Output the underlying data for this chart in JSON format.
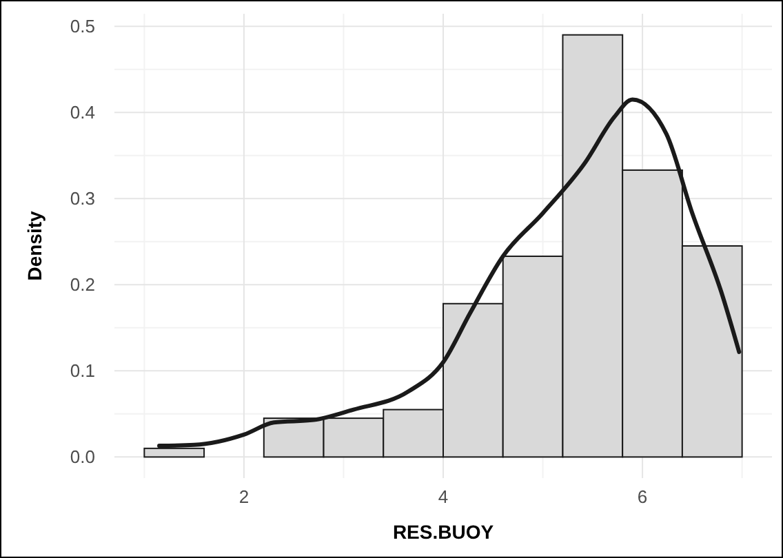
{
  "chart_data": {
    "type": "histogram",
    "xlabel": "RES.BUOY",
    "ylabel": "Density",
    "bins": [
      1,
      1.6,
      2.2,
      2.8,
      3.4,
      4.0,
      4.6,
      5.2,
      5.8,
      6.4,
      7.0
    ],
    "values": [
      0.01,
      0,
      0.045,
      0.045,
      0.055,
      0.178,
      0.233,
      0.49,
      0.333,
      0.245
    ],
    "color": "#d9d9d9",
    "series": [
      {
        "type": "line",
        "color": "#1a1a1a",
        "x": [
          1.15,
          1.5,
          2.0,
          2.3,
          2.7,
          3.1,
          3.65,
          4.0,
          4.27,
          4.6,
          5.0,
          5.42,
          5.72,
          5.9,
          6.24,
          6.5,
          6.79,
          6.97
        ],
        "values": [
          0.013,
          0.014,
          0.026,
          0.04,
          0.043,
          0.055,
          0.076,
          0.11,
          0.167,
          0.233,
          0.283,
          0.341,
          0.395,
          0.415,
          0.375,
          0.283,
          0.192,
          0.122
        ]
      }
    ],
    "xlim": [
      0.7,
      7.3
    ],
    "xticks": [
      2,
      4,
      6
    ],
    "ylim": [
      -0.0245,
      0.5145
    ],
    "yticks": [
      {
        "value": 0,
        "label": "0.0"
      },
      {
        "value": 0.1,
        "label": "0.1"
      },
      {
        "value": 0.2,
        "label": "0.2"
      },
      {
        "value": 0.3,
        "label": "0.3"
      },
      {
        "value": 0.4,
        "label": "0.4"
      },
      {
        "value": 0.5,
        "label": "0.5"
      }
    ],
    "grid": true,
    "line_style": "solid",
    "marker": "none"
  }
}
